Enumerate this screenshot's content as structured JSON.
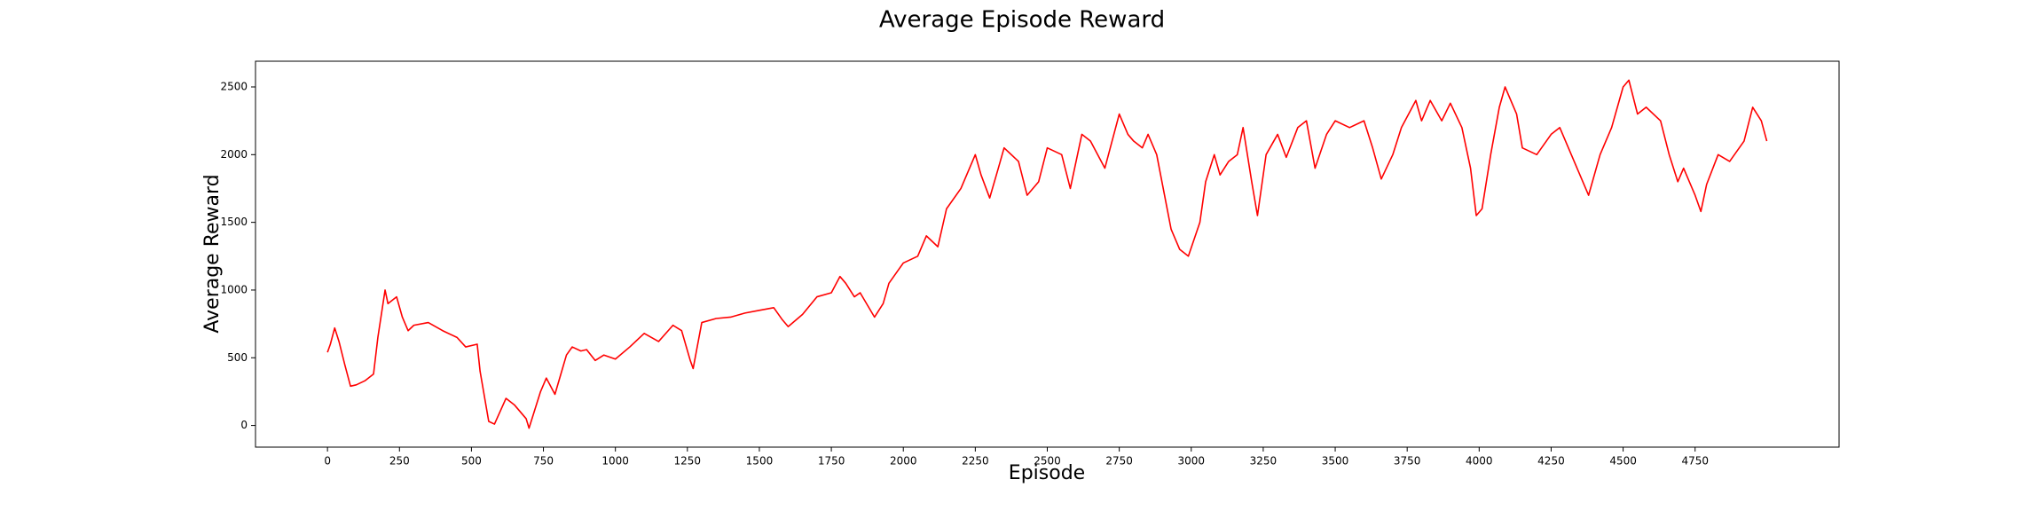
{
  "chart_data": {
    "type": "line",
    "title": "Average Episode Reward",
    "xlabel": "Episode",
    "ylabel": "Average Reward",
    "color": "#ff0000",
    "grid": false,
    "x": [
      0,
      10,
      25,
      40,
      60,
      80,
      100,
      130,
      160,
      175,
      200,
      210,
      240,
      260,
      280,
      300,
      350,
      400,
      450,
      480,
      520,
      530,
      560,
      580,
      620,
      650,
      690,
      700,
      740,
      760,
      790,
      830,
      850,
      880,
      900,
      930,
      960,
      1000,
      1050,
      1100,
      1150,
      1200,
      1230,
      1260,
      1270,
      1300,
      1350,
      1400,
      1450,
      1500,
      1550,
      1580,
      1600,
      1650,
      1700,
      1750,
      1780,
      1800,
      1830,
      1850,
      1900,
      1930,
      1950,
      2000,
      2050,
      2080,
      2120,
      2150,
      2200,
      2250,
      2270,
      2300,
      2330,
      2350,
      2400,
      2430,
      2470,
      2500,
      2550,
      2580,
      2620,
      2650,
      2700,
      2750,
      2780,
      2800,
      2830,
      2850,
      2880,
      2930,
      2960,
      2990,
      3030,
      3050,
      3080,
      3100,
      3130,
      3160,
      3180,
      3210,
      3230,
      3260,
      3300,
      3330,
      3370,
      3400,
      3430,
      3470,
      3500,
      3550,
      3600,
      3630,
      3660,
      3700,
      3730,
      3780,
      3800,
      3830,
      3870,
      3900,
      3940,
      3970,
      3990,
      4010,
      4040,
      4070,
      4090,
      4130,
      4150,
      4200,
      4250,
      4280,
      4320,
      4350,
      4380,
      4420,
      4460,
      4500,
      4520,
      4550,
      4580,
      4630,
      4660,
      4690,
      4710,
      4750,
      4770,
      4790,
      4830,
      4870,
      4920,
      4950,
      4980,
      4999
    ],
    "values": [
      540,
      600,
      720,
      620,
      450,
      290,
      300,
      330,
      380,
      650,
      1000,
      900,
      950,
      800,
      700,
      740,
      760,
      700,
      650,
      580,
      600,
      400,
      30,
      10,
      200,
      150,
      50,
      -20,
      250,
      350,
      230,
      520,
      580,
      550,
      560,
      480,
      520,
      490,
      580,
      680,
      620,
      740,
      700,
      480,
      420,
      760,
      790,
      800,
      830,
      850,
      870,
      780,
      730,
      820,
      950,
      980,
      1100,
      1050,
      950,
      980,
      800,
      900,
      1050,
      1200,
      1250,
      1400,
      1320,
      1600,
      1750,
      2000,
      1850,
      1680,
      1900,
      2050,
      1950,
      1700,
      1800,
      2050,
      2000,
      1750,
      2150,
      2100,
      1900,
      2300,
      2150,
      2100,
      2050,
      2150,
      2000,
      1450,
      1300,
      1250,
      1500,
      1800,
      2000,
      1850,
      1950,
      2000,
      2200,
      1800,
      1550,
      2000,
      2150,
      1980,
      2200,
      2250,
      1900,
      2150,
      2250,
      2200,
      2250,
      2050,
      1820,
      2000,
      2200,
      2400,
      2250,
      2400,
      2250,
      2380,
      2200,
      1900,
      1550,
      1600,
      2000,
      2350,
      2500,
      2300,
      2050,
      2000,
      2150,
      2200,
      2000,
      1850,
      1700,
      2000,
      2200,
      2500,
      2550,
      2300,
      2350,
      2250,
      2000,
      1800,
      1900,
      1700,
      1580,
      1780,
      2000,
      1950,
      2100,
      2350,
      2250,
      2100
    ],
    "xlim": [
      -250,
      5250
    ],
    "ylim": [
      -160,
      2690
    ],
    "xticks": [
      0,
      250,
      500,
      750,
      1000,
      1250,
      1500,
      1750,
      2000,
      2250,
      2500,
      2750,
      3000,
      3250,
      3500,
      3750,
      4000,
      4250,
      4500,
      4750
    ],
    "yticks": [
      0,
      500,
      1000,
      1500,
      2000,
      2500
    ]
  }
}
